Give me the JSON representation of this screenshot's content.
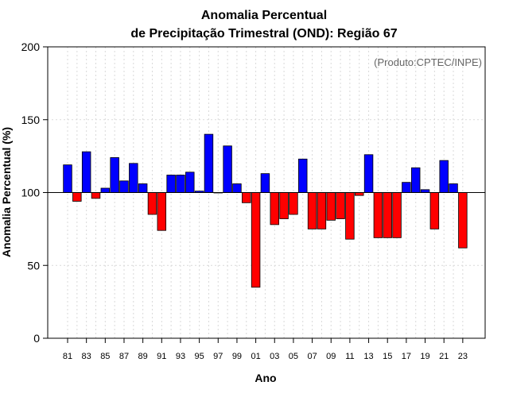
{
  "chart_data": {
    "type": "bar",
    "title_line1": "Anomalia Percentual",
    "title_line2": "de Precipitação Trimestral (OND): Região 67",
    "xlabel": "Ano",
    "ylabel": "Anomalia Percentual (%)",
    "source": "(Produto:CPTEC/INPE)",
    "baseline": 100,
    "ylim": [
      0,
      200
    ],
    "yticks": [
      "0",
      "50",
      "100",
      "150",
      "200"
    ],
    "grid": true,
    "colors": {
      "above": "#0000ff",
      "below": "#ff0000",
      "outline": "#000000",
      "grid": "#d9d9d9"
    },
    "categories": [
      "81",
      "82",
      "83",
      "84",
      "85",
      "86",
      "87",
      "88",
      "89",
      "90",
      "91",
      "92",
      "93",
      "94",
      "95",
      "96",
      "97",
      "98",
      "99",
      "00",
      "01",
      "02",
      "03",
      "04",
      "05",
      "06",
      "07",
      "08",
      "09",
      "10",
      "11",
      "12",
      "13",
      "14",
      "15",
      "16",
      "17",
      "18",
      "19",
      "20",
      "21",
      "22",
      "23"
    ],
    "xtick_labels": [
      "81",
      "83",
      "85",
      "87",
      "89",
      "91",
      "93",
      "95",
      "97",
      "99",
      "01",
      "03",
      "05",
      "07",
      "09",
      "11",
      "13",
      "15",
      "17",
      "19",
      "21",
      "23"
    ],
    "values": [
      119,
      94,
      128,
      96,
      103,
      124,
      108,
      120,
      106,
      85,
      74,
      112,
      112,
      114,
      101,
      140,
      100,
      132,
      106,
      93,
      35,
      113,
      78,
      82,
      85,
      123,
      75,
      75,
      81,
      82,
      68,
      98,
      126,
      69,
      69,
      69,
      107,
      117,
      102,
      75,
      122,
      106,
      62
    ]
  }
}
